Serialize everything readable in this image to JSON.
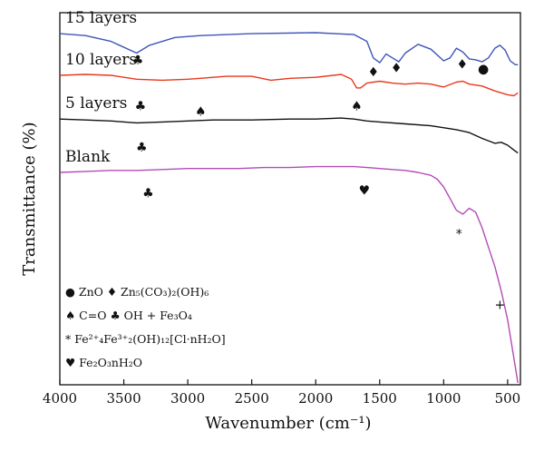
{
  "chart_data": {
    "type": "line",
    "title": "",
    "xlabel": "Wavenumber (cm⁻¹)",
    "ylabel": "Transmittance (%)",
    "xlim": [
      4000,
      400
    ],
    "x_ticks": [
      4000,
      3500,
      3000,
      2500,
      2000,
      1500,
      1000,
      500
    ],
    "grid": false,
    "y_axis_ticks": false,
    "series": [
      {
        "name": "15 layers",
        "color": "#3f55b8",
        "points": [
          [
            4000,
            6.0
          ],
          [
            3800,
            5.8
          ],
          [
            3600,
            5.2
          ],
          [
            3400,
            4.0
          ],
          [
            3300,
            4.8
          ],
          [
            3100,
            5.6
          ],
          [
            2900,
            5.8
          ],
          [
            2500,
            6.0
          ],
          [
            2000,
            6.1
          ],
          [
            1700,
            5.9
          ],
          [
            1600,
            5.2
          ],
          [
            1550,
            3.5
          ],
          [
            1500,
            3.0
          ],
          [
            1450,
            3.9
          ],
          [
            1400,
            3.5
          ],
          [
            1350,
            3.1
          ],
          [
            1300,
            4.0
          ],
          [
            1200,
            4.9
          ],
          [
            1100,
            4.4
          ],
          [
            1000,
            3.2
          ],
          [
            950,
            3.5
          ],
          [
            900,
            4.5
          ],
          [
            850,
            4.1
          ],
          [
            800,
            3.4
          ],
          [
            750,
            3.3
          ],
          [
            700,
            3.1
          ],
          [
            650,
            3.5
          ],
          [
            600,
            4.5
          ],
          [
            560,
            4.8
          ],
          [
            520,
            4.3
          ],
          [
            480,
            3.2
          ],
          [
            440,
            2.8
          ],
          [
            420,
            2.8
          ]
        ]
      },
      {
        "name": "10 layers",
        "color": "#e8391c",
        "points": [
          [
            4000,
            1.7
          ],
          [
            3800,
            1.8
          ],
          [
            3600,
            1.7
          ],
          [
            3400,
            1.3
          ],
          [
            3200,
            1.2
          ],
          [
            3000,
            1.3
          ],
          [
            2900,
            1.4
          ],
          [
            2800,
            1.5
          ],
          [
            2700,
            1.6
          ],
          [
            2500,
            1.6
          ],
          [
            2350,
            1.2
          ],
          [
            2200,
            1.4
          ],
          [
            2000,
            1.5
          ],
          [
            1800,
            1.8
          ],
          [
            1720,
            1.3
          ],
          [
            1680,
            0.4
          ],
          [
            1650,
            0.4
          ],
          [
            1600,
            0.9
          ],
          [
            1500,
            1.1
          ],
          [
            1400,
            0.9
          ],
          [
            1300,
            0.8
          ],
          [
            1200,
            0.9
          ],
          [
            1100,
            0.8
          ],
          [
            1000,
            0.5
          ],
          [
            900,
            1.0
          ],
          [
            850,
            1.1
          ],
          [
            800,
            0.8
          ],
          [
            700,
            0.6
          ],
          [
            600,
            0.1
          ],
          [
            500,
            -0.3
          ],
          [
            450,
            -0.4
          ],
          [
            420,
            -0.1
          ]
        ]
      },
      {
        "name": "5 layers",
        "color": "#111111",
        "points": [
          [
            4000,
            -2.8
          ],
          [
            3800,
            -2.9
          ],
          [
            3600,
            -3.0
          ],
          [
            3400,
            -3.2
          ],
          [
            3200,
            -3.1
          ],
          [
            3000,
            -3.0
          ],
          [
            2800,
            -2.9
          ],
          [
            2500,
            -2.9
          ],
          [
            2200,
            -2.8
          ],
          [
            2000,
            -2.8
          ],
          [
            1800,
            -2.7
          ],
          [
            1700,
            -2.8
          ],
          [
            1600,
            -3.0
          ],
          [
            1500,
            -3.1
          ],
          [
            1300,
            -3.3
          ],
          [
            1100,
            -3.5
          ],
          [
            900,
            -3.9
          ],
          [
            800,
            -4.2
          ],
          [
            700,
            -4.8
          ],
          [
            600,
            -5.3
          ],
          [
            550,
            -5.2
          ],
          [
            500,
            -5.5
          ],
          [
            450,
            -6.0
          ],
          [
            420,
            -6.3
          ]
        ]
      },
      {
        "name": "Blank",
        "color": "#b34bb6",
        "points": [
          [
            4000,
            -8.3
          ],
          [
            3800,
            -8.2
          ],
          [
            3600,
            -8.1
          ],
          [
            3400,
            -8.1
          ],
          [
            3200,
            -8.0
          ],
          [
            3000,
            -7.9
          ],
          [
            2800,
            -7.9
          ],
          [
            2600,
            -7.9
          ],
          [
            2400,
            -7.8
          ],
          [
            2200,
            -7.8
          ],
          [
            2000,
            -7.7
          ],
          [
            1800,
            -7.7
          ],
          [
            1700,
            -7.7
          ],
          [
            1600,
            -7.8
          ],
          [
            1400,
            -8.0
          ],
          [
            1300,
            -8.1
          ],
          [
            1200,
            -8.3
          ],
          [
            1100,
            -8.6
          ],
          [
            1050,
            -9.0
          ],
          [
            1000,
            -9.8
          ],
          [
            950,
            -11.0
          ],
          [
            900,
            -12.2
          ],
          [
            850,
            -12.6
          ],
          [
            800,
            -12.0
          ],
          [
            750,
            -12.4
          ],
          [
            700,
            -14.0
          ],
          [
            650,
            -16.0
          ],
          [
            600,
            -18.0
          ],
          [
            550,
            -20.5
          ],
          [
            500,
            -23.5
          ],
          [
            450,
            -27.5
          ],
          [
            420,
            -30.0
          ]
        ]
      }
    ],
    "series_labels": [
      "15 layers",
      "10 layers",
      "5 layers",
      "Blank"
    ],
    "markers": [
      {
        "symbol": "♣",
        "x": 3390,
        "y": 3.2
      },
      {
        "symbol": "♦",
        "x": 1550,
        "y": 2.0
      },
      {
        "symbol": "♦",
        "x": 1370,
        "y": 2.4
      },
      {
        "symbol": "♦",
        "x": 855,
        "y": 2.8
      },
      {
        "symbol": "●",
        "x": 690,
        "y": 2.3
      },
      {
        "symbol": "♣",
        "x": 3370,
        "y": -1.5
      },
      {
        "symbol": "♠",
        "x": 2900,
        "y": -2.1
      },
      {
        "symbol": "♠",
        "x": 1680,
        "y": -1.5
      },
      {
        "symbol": "♣",
        "x": 3360,
        "y": -5.8
      },
      {
        "symbol": "♣",
        "x": 3310,
        "y": -10.5
      },
      {
        "symbol": "♥",
        "x": 1620,
        "y": -10.2
      },
      {
        "symbol": "*",
        "x": 880,
        "y": -14.7
      },
      {
        "symbol": "+",
        "x": 560,
        "y": -22.0
      }
    ],
    "legend": [
      {
        "text": "● ZnO  ♦ Zn₅(CO₃)₂(OH)₆"
      },
      {
        "text": "♠ C=O  ♣ OH + Fe₃O₄"
      },
      {
        "text": "* Fe²⁺₄Fe³⁺₂(OH)₁₂[Cl·nH₂O]"
      },
      {
        "text": "♥ Fe₂O₃nH₂O"
      }
    ]
  }
}
